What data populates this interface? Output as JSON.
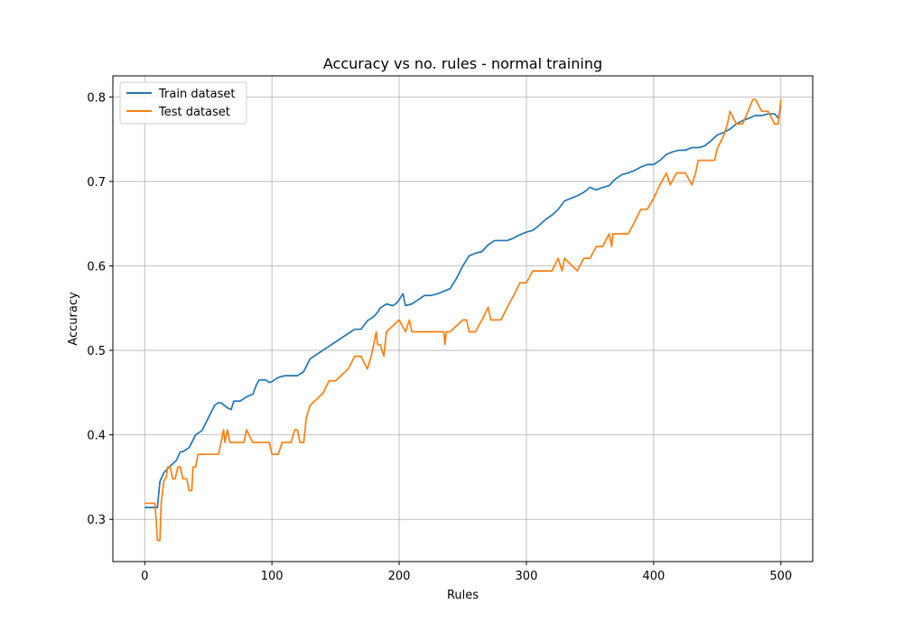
{
  "chart_data": {
    "type": "line",
    "title": "Accuracy vs no. rules - normal training",
    "xlabel": "Rules",
    "ylabel": "Accuracy",
    "xlim": [
      -25,
      525
    ],
    "ylim": [
      0.25,
      0.825
    ],
    "xticks": [
      0,
      100,
      200,
      300,
      400,
      500
    ],
    "yticks": [
      0.3,
      0.4,
      0.5,
      0.6,
      0.7,
      0.8
    ],
    "grid": true,
    "legend_position": "top-left",
    "series": [
      {
        "name": "Train dataset",
        "color": "#1f77b4",
        "x": [
          0,
          5,
          10,
          12,
          15,
          18,
          20,
          25,
          28,
          30,
          35,
          40,
          45,
          50,
          55,
          58,
          60,
          65,
          68,
          70,
          75,
          80,
          85,
          88,
          90,
          95,
          98,
          100,
          105,
          110,
          115,
          120,
          125,
          130,
          135,
          140,
          145,
          150,
          155,
          160,
          165,
          170,
          175,
          180,
          183,
          185,
          190,
          195,
          198,
          200,
          203,
          205,
          210,
          215,
          220,
          225,
          230,
          235,
          240,
          245,
          250,
          255,
          260,
          265,
          270,
          275,
          280,
          285,
          290,
          295,
          300,
          305,
          310,
          315,
          320,
          325,
          330,
          335,
          340,
          345,
          350,
          355,
          360,
          365,
          370,
          375,
          380,
          385,
          390,
          395,
          400,
          405,
          410,
          415,
          420,
          425,
          430,
          435,
          440,
          445,
          450,
          455,
          460,
          465,
          470,
          475,
          480,
          485,
          490,
          495,
          498,
          500
        ],
        "y": [
          0.314,
          0.314,
          0.314,
          0.345,
          0.355,
          0.36,
          0.363,
          0.37,
          0.38,
          0.38,
          0.385,
          0.4,
          0.405,
          0.42,
          0.435,
          0.438,
          0.438,
          0.432,
          0.43,
          0.44,
          0.44,
          0.445,
          0.448,
          0.46,
          0.465,
          0.465,
          0.462,
          0.463,
          0.468,
          0.47,
          0.47,
          0.47,
          0.475,
          0.49,
          0.495,
          0.5,
          0.505,
          0.51,
          0.515,
          0.52,
          0.525,
          0.525,
          0.535,
          0.54,
          0.545,
          0.55,
          0.555,
          0.553,
          0.556,
          0.56,
          0.567,
          0.553,
          0.555,
          0.56,
          0.565,
          0.565,
          0.567,
          0.57,
          0.573,
          0.585,
          0.6,
          0.612,
          0.615,
          0.617,
          0.625,
          0.63,
          0.63,
          0.63,
          0.633,
          0.637,
          0.64,
          0.642,
          0.648,
          0.655,
          0.66,
          0.667,
          0.677,
          0.68,
          0.683,
          0.687,
          0.693,
          0.69,
          0.693,
          0.695,
          0.703,
          0.708,
          0.71,
          0.713,
          0.717,
          0.72,
          0.72,
          0.725,
          0.732,
          0.735,
          0.737,
          0.737,
          0.74,
          0.74,
          0.742,
          0.748,
          0.755,
          0.758,
          0.762,
          0.768,
          0.772,
          0.775,
          0.778,
          0.778,
          0.78,
          0.78,
          0.775,
          0.79
        ]
      },
      {
        "name": "Test dataset",
        "color": "#ff7f0e",
        "x": [
          0,
          8,
          9,
          10,
          12,
          13,
          15,
          17,
          18,
          20,
          22,
          24,
          26,
          28,
          30,
          33,
          35,
          37,
          38,
          40,
          42,
          45,
          55,
          58,
          60,
          62,
          63,
          65,
          67,
          70,
          78,
          80,
          85,
          95,
          98,
          100,
          105,
          108,
          115,
          118,
          120,
          122,
          125,
          127,
          130,
          140,
          145,
          148,
          150,
          160,
          165,
          170,
          175,
          178,
          180,
          182,
          183,
          185,
          188,
          190,
          200,
          205,
          208,
          210,
          215,
          220,
          230,
          235,
          236,
          237,
          240,
          250,
          253,
          255,
          260,
          265,
          270,
          272,
          275,
          280,
          285,
          290,
          295,
          300,
          305,
          310,
          320,
          325,
          328,
          330,
          340,
          345,
          350,
          355,
          360,
          365,
          367,
          368,
          370,
          380,
          385,
          390,
          395,
          400,
          405,
          410,
          413,
          418,
          420,
          425,
          430,
          433,
          435,
          445,
          448,
          450,
          455,
          458,
          460,
          465,
          470,
          478,
          480,
          485,
          490,
          495,
          498,
          500
        ],
        "y": [
          0.319,
          0.319,
          0.3,
          0.275,
          0.275,
          0.32,
          0.345,
          0.35,
          0.362,
          0.362,
          0.348,
          0.348,
          0.362,
          0.362,
          0.348,
          0.348,
          0.334,
          0.334,
          0.362,
          0.362,
          0.377,
          0.377,
          0.377,
          0.377,
          0.391,
          0.406,
          0.391,
          0.406,
          0.391,
          0.391,
          0.391,
          0.406,
          0.391,
          0.391,
          0.391,
          0.377,
          0.377,
          0.391,
          0.391,
          0.406,
          0.406,
          0.391,
          0.391,
          0.42,
          0.435,
          0.449,
          0.464,
          0.464,
          0.464,
          0.478,
          0.493,
          0.493,
          0.478,
          0.493,
          0.507,
          0.522,
          0.507,
          0.507,
          0.493,
          0.522,
          0.536,
          0.522,
          0.536,
          0.522,
          0.522,
          0.522,
          0.522,
          0.522,
          0.507,
          0.522,
          0.522,
          0.536,
          0.536,
          0.522,
          0.522,
          0.536,
          0.551,
          0.536,
          0.536,
          0.536,
          0.551,
          0.565,
          0.58,
          0.58,
          0.594,
          0.594,
          0.594,
          0.609,
          0.594,
          0.609,
          0.594,
          0.609,
          0.609,
          0.623,
          0.623,
          0.638,
          0.623,
          0.638,
          0.638,
          0.638,
          0.652,
          0.667,
          0.667,
          0.68,
          0.696,
          0.71,
          0.696,
          0.71,
          0.71,
          0.71,
          0.696,
          0.71,
          0.725,
          0.725,
          0.725,
          0.739,
          0.754,
          0.768,
          0.783,
          0.768,
          0.768,
          0.797,
          0.797,
          0.783,
          0.783,
          0.768,
          0.768,
          0.797
        ]
      }
    ]
  }
}
